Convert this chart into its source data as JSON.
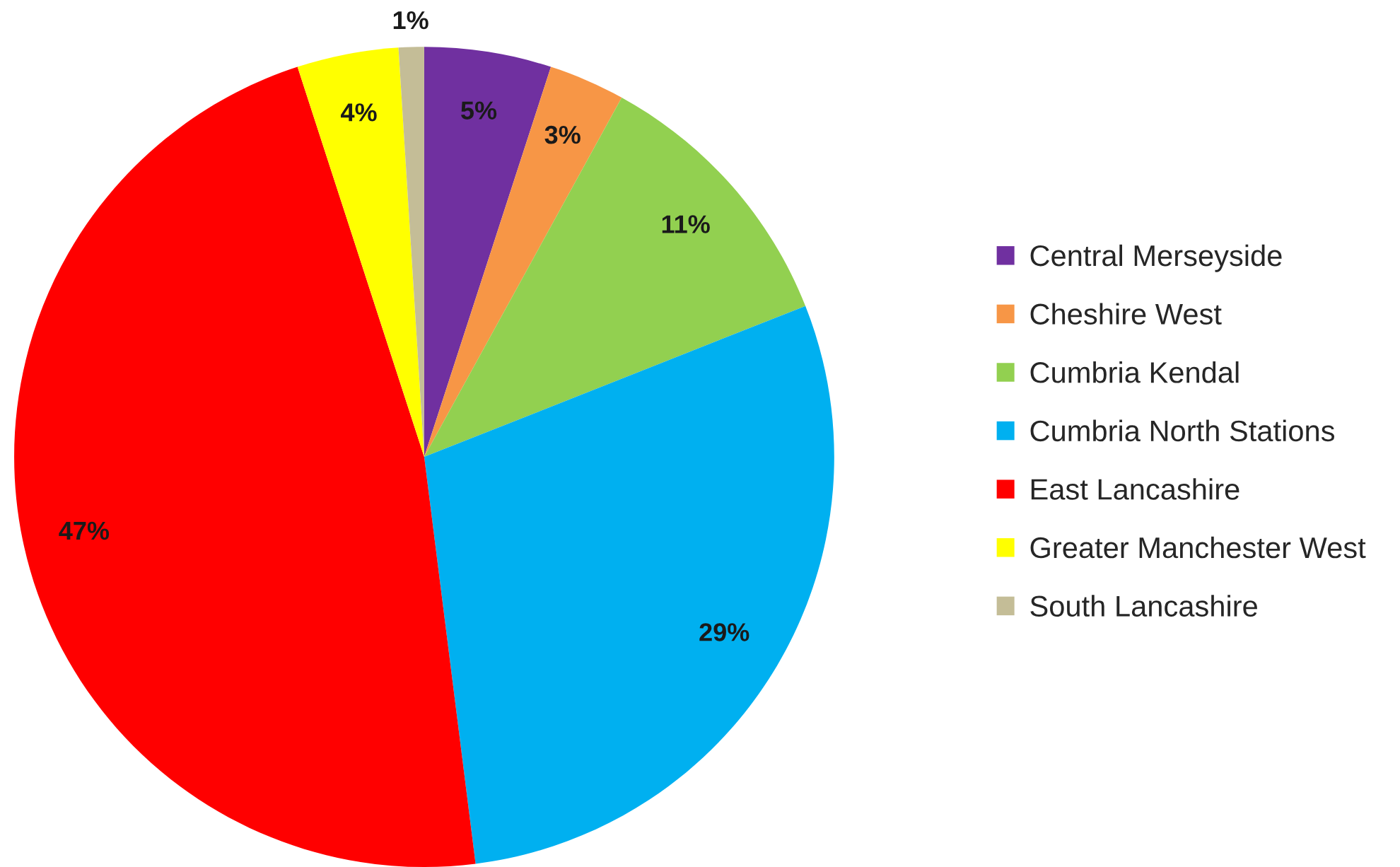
{
  "chart_data": {
    "type": "pie",
    "categories": [
      "Central Merseyside",
      "Cheshire West",
      "Cumbria Kendal",
      "Cumbria North Stations",
      "East Lancashire",
      "Greater Manchester West",
      "South Lancashire"
    ],
    "values": [
      5,
      3,
      11,
      29,
      47,
      4,
      1
    ],
    "colors": [
      "#7030a0",
      "#f79646",
      "#92d050",
      "#00b0f0",
      "#ff0000",
      "#ffff00",
      "#c4bd97"
    ],
    "value_labels": [
      "5%",
      "3%",
      "11%",
      "29%",
      "47%",
      "4%",
      "1%"
    ],
    "legend": "right"
  }
}
